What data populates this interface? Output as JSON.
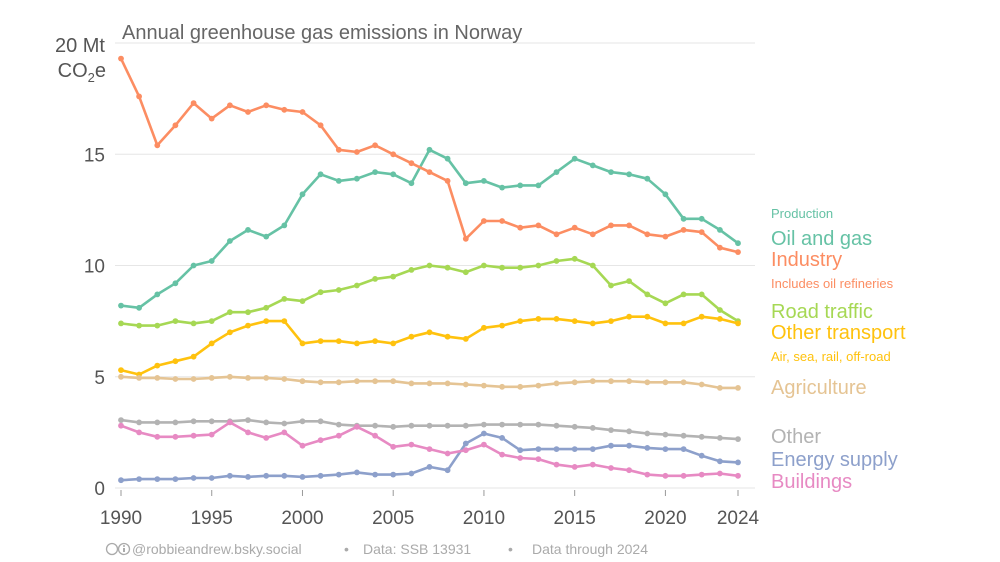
{
  "chart_data": {
    "type": "line",
    "title": "Annual greenhouse gas emissions in Norway",
    "ylabel_line1": "20 Mt",
    "ylabel_line2_base": "CO",
    "ylabel_line2_sub": "2",
    "ylabel_line2_tail": "e",
    "ylim": [
      0,
      20
    ],
    "xlim": [
      1990,
      2024
    ],
    "y_ticks": [
      0,
      5,
      10,
      15
    ],
    "x_ticks": [
      1990,
      1995,
      2000,
      2005,
      2010,
      2015,
      2020,
      2024
    ],
    "grid": true,
    "years": [
      1990,
      1991,
      1992,
      1993,
      1994,
      1995,
      1996,
      1997,
      1998,
      1999,
      2000,
      2001,
      2002,
      2003,
      2004,
      2005,
      2006,
      2007,
      2008,
      2009,
      2010,
      2011,
      2012,
      2013,
      2014,
      2015,
      2016,
      2017,
      2018,
      2019,
      2020,
      2021,
      2022,
      2023,
      2024
    ],
    "series": [
      {
        "key": "oil_gas",
        "name": "Oil and gas",
        "group_note": "Production",
        "color": "#66c2a5",
        "values": [
          8.2,
          8.1,
          8.7,
          9.2,
          10.0,
          10.2,
          11.1,
          11.6,
          11.3,
          11.8,
          13.2,
          14.1,
          13.8,
          13.9,
          14.2,
          14.1,
          13.7,
          15.2,
          14.8,
          13.7,
          13.8,
          13.5,
          13.6,
          13.6,
          14.2,
          14.8,
          14.5,
          14.2,
          14.1,
          13.9,
          13.2,
          12.1,
          12.1,
          11.6,
          11.0
        ]
      },
      {
        "key": "industry",
        "name": "Industry",
        "note": "Includes oil refineries",
        "color": "#fc8d62",
        "values": [
          19.3,
          17.6,
          15.4,
          16.3,
          17.3,
          16.6,
          17.2,
          16.9,
          17.2,
          17.0,
          16.9,
          16.3,
          15.2,
          15.1,
          15.4,
          15.0,
          14.6,
          14.2,
          13.8,
          11.2,
          12.0,
          12.0,
          11.7,
          11.8,
          11.4,
          11.7,
          11.4,
          11.8,
          11.8,
          11.4,
          11.3,
          11.6,
          11.5,
          10.8,
          10.6
        ]
      },
      {
        "key": "road",
        "name": "Road traffic",
        "color": "#a6d854",
        "values": [
          7.4,
          7.3,
          7.3,
          7.5,
          7.4,
          7.5,
          7.9,
          7.9,
          8.1,
          8.5,
          8.4,
          8.8,
          8.9,
          9.1,
          9.4,
          9.5,
          9.8,
          10.0,
          9.9,
          9.7,
          10.0,
          9.9,
          9.9,
          10.0,
          10.2,
          10.3,
          10.0,
          9.1,
          9.3,
          8.7,
          8.3,
          8.7,
          8.7,
          8.0,
          7.5
        ]
      },
      {
        "key": "other_transport",
        "name": "Other transport",
        "note": "Air, sea, rail, off-road",
        "color": "#ffc20e",
        "values": [
          5.3,
          5.1,
          5.5,
          5.7,
          5.9,
          6.5,
          7.0,
          7.3,
          7.5,
          7.5,
          6.5,
          6.6,
          6.6,
          6.5,
          6.6,
          6.5,
          6.8,
          7.0,
          6.8,
          6.7,
          7.2,
          7.3,
          7.5,
          7.6,
          7.6,
          7.5,
          7.4,
          7.5,
          7.7,
          7.7,
          7.4,
          7.4,
          7.7,
          7.6,
          7.4
        ]
      },
      {
        "key": "agriculture",
        "name": "Agriculture",
        "color": "#e5c494",
        "values": [
          5.0,
          4.95,
          4.95,
          4.9,
          4.9,
          4.95,
          5.0,
          4.95,
          4.95,
          4.9,
          4.8,
          4.75,
          4.75,
          4.8,
          4.8,
          4.8,
          4.7,
          4.7,
          4.7,
          4.65,
          4.6,
          4.55,
          4.55,
          4.6,
          4.7,
          4.75,
          4.8,
          4.8,
          4.8,
          4.75,
          4.75,
          4.75,
          4.65,
          4.5,
          4.5
        ]
      },
      {
        "key": "other",
        "name": "Other",
        "color": "#b3b3b3",
        "values": [
          3.05,
          2.95,
          2.95,
          2.95,
          3.0,
          3.0,
          3.0,
          3.05,
          2.95,
          2.9,
          3.0,
          3.0,
          2.85,
          2.8,
          2.8,
          2.75,
          2.8,
          2.8,
          2.8,
          2.8,
          2.85,
          2.85,
          2.85,
          2.85,
          2.8,
          2.75,
          2.7,
          2.6,
          2.55,
          2.45,
          2.4,
          2.35,
          2.3,
          2.25,
          2.2
        ]
      },
      {
        "key": "energy",
        "name": "Energy supply",
        "color": "#8da0cb",
        "values": [
          0.35,
          0.4,
          0.4,
          0.4,
          0.45,
          0.45,
          0.55,
          0.5,
          0.55,
          0.55,
          0.5,
          0.55,
          0.6,
          0.7,
          0.6,
          0.6,
          0.65,
          0.95,
          0.8,
          2.0,
          2.45,
          2.25,
          1.7,
          1.75,
          1.75,
          1.75,
          1.75,
          1.9,
          1.9,
          1.8,
          1.75,
          1.75,
          1.45,
          1.2,
          1.15
        ]
      },
      {
        "key": "buildings",
        "name": "Buildings",
        "color": "#e78ac3",
        "values": [
          2.8,
          2.5,
          2.3,
          2.3,
          2.35,
          2.4,
          2.95,
          2.5,
          2.25,
          2.5,
          1.9,
          2.15,
          2.35,
          2.75,
          2.35,
          1.85,
          1.95,
          1.75,
          1.55,
          1.7,
          1.95,
          1.5,
          1.35,
          1.3,
          1.05,
          0.95,
          1.05,
          0.9,
          0.8,
          0.6,
          0.55,
          0.55,
          0.6,
          0.65,
          0.55
        ]
      }
    ],
    "legend": {
      "group_note": "Production",
      "placement": "right"
    }
  },
  "footer": {
    "credit": "@robbieandrew.bsky.social",
    "source": "Data: SSB 13931",
    "range": "Data through 2024",
    "cc_icon": "creative-commons-icon",
    "bullet": "•"
  }
}
